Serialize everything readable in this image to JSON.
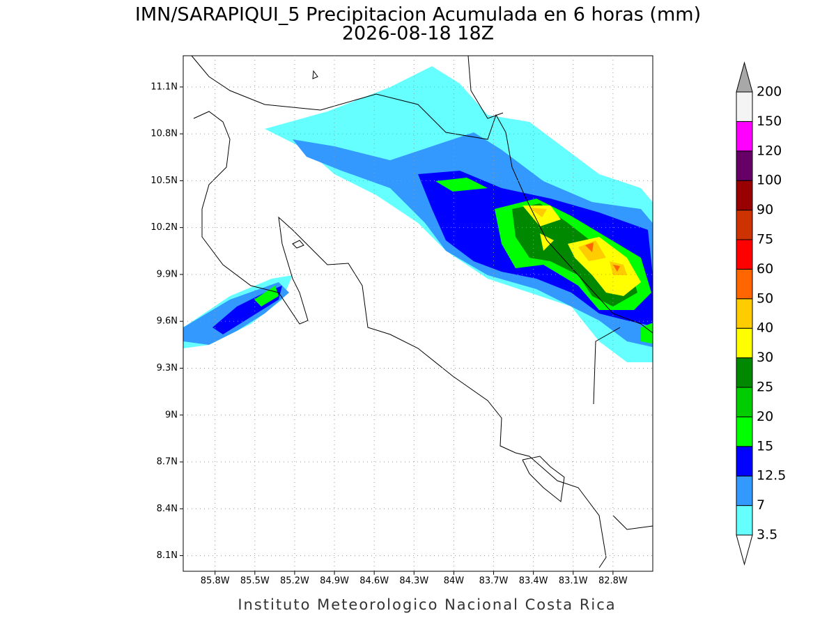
{
  "title": "IMN/SARAPIQUI_5 Precipitacion Acumulada en 6 horas (mm)",
  "subtitle": "2026-08-18 18Z",
  "footer": "Instituto Meteorologico Nacional Costa Rica",
  "map": {
    "xlim": [
      -86.04,
      -82.5
    ],
    "ylim": [
      8.0,
      11.3
    ],
    "xticks": [
      {
        "value": -85.8,
        "label": "85.8W"
      },
      {
        "value": -85.5,
        "label": "85.5W"
      },
      {
        "value": -85.2,
        "label": "85.2W"
      },
      {
        "value": -84.9,
        "label": "84.9W"
      },
      {
        "value": -84.6,
        "label": "84.6W"
      },
      {
        "value": -84.3,
        "label": "84.3W"
      },
      {
        "value": -84.0,
        "label": "84W"
      },
      {
        "value": -83.7,
        "label": "83.7W"
      },
      {
        "value": -83.4,
        "label": "83.4W"
      },
      {
        "value": -83.1,
        "label": "83.1W"
      },
      {
        "value": -82.8,
        "label": "82.8W"
      }
    ],
    "yticks": [
      {
        "value": 8.1,
        "label": "8.1N"
      },
      {
        "value": 8.4,
        "label": "8.4N"
      },
      {
        "value": 8.7,
        "label": "8.7N"
      },
      {
        "value": 9.0,
        "label": "9N"
      },
      {
        "value": 9.3,
        "label": "9.3N"
      },
      {
        "value": 9.6,
        "label": "9.6N"
      },
      {
        "value": 9.9,
        "label": "9.9N"
      },
      {
        "value": 10.2,
        "label": "10.2N"
      },
      {
        "value": 10.5,
        "label": "10.5N"
      },
      {
        "value": 10.8,
        "label": "10.8N"
      },
      {
        "value": 11.1,
        "label": "11.1N"
      }
    ],
    "grid": true
  },
  "colorbar": {
    "levels": [
      3.5,
      7,
      12.5,
      15,
      20,
      25,
      30,
      40,
      50,
      60,
      75,
      90,
      100,
      120,
      150,
      200
    ],
    "colors": [
      "#66ffff",
      "#3399ff",
      "#0000ff",
      "#00ff00",
      "#00cc00",
      "#008800",
      "#ffff00",
      "#ffcc00",
      "#ff6600",
      "#ff0000",
      "#cc3300",
      "#990000",
      "#660066",
      "#ff00ff",
      "#f4f4f4"
    ],
    "over_color": "#a8a8a8",
    "under_color": "#ffffff"
  }
}
